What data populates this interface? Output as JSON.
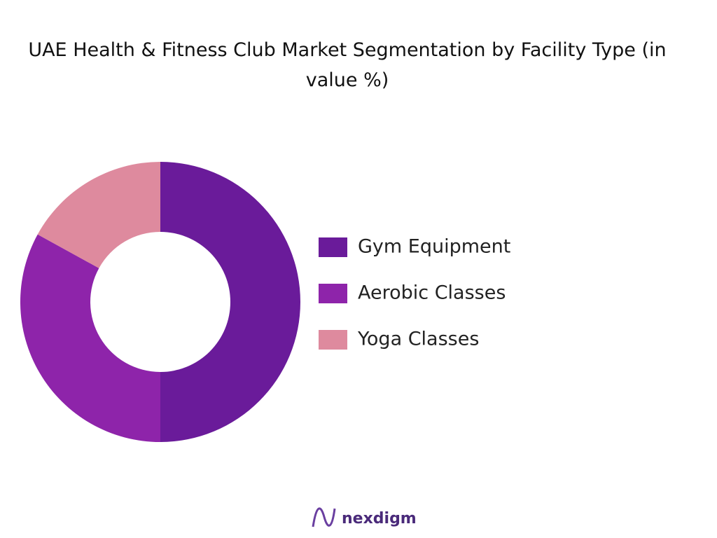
{
  "chart_data": {
    "type": "pie",
    "title": "UAE Health & Fitness Club Market Segmentation by Facility Type (in value %)",
    "categories": [
      "Gym Equipment",
      "Aerobic Classes",
      "Yoga Classes"
    ],
    "values": [
      50,
      33,
      17
    ],
    "colors": [
      "#6a1b9a",
      "#8e24aa",
      "#de8a9e"
    ],
    "donut": true,
    "legend": "right"
  },
  "footer": {
    "brand": "nexdigm"
  }
}
